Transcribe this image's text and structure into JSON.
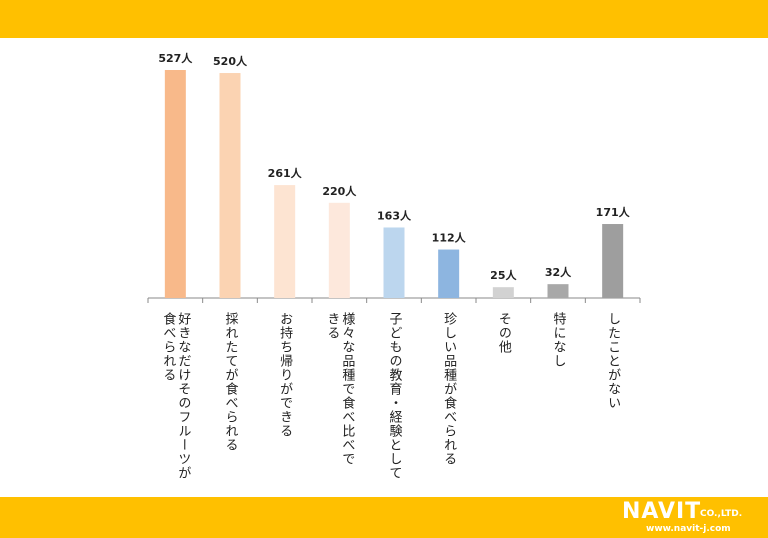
{
  "chart_data": {
    "type": "bar",
    "categories": [
      [
        "好きなだけそのフルーツが",
        "食べられる"
      ],
      [
        "採れたてが食べられる"
      ],
      [
        "お持ち帰りができる"
      ],
      [
        "様々な品種で食べ比べで",
        "きる"
      ],
      [
        "子どもの教育・経験として"
      ],
      [
        "珍しい品種が食べられる"
      ],
      [
        "その他"
      ],
      [
        "特になし"
      ],
      [
        "したことがない"
      ]
    ],
    "values": [
      527,
      520,
      261,
      220,
      163,
      112,
      25,
      32,
      171
    ],
    "value_labels": [
      "527人",
      "520人",
      "261人",
      "220人",
      "163人",
      "112人",
      "25人",
      "32人",
      "171人"
    ],
    "colors": [
      "#f8b98a",
      "#fbd3b2",
      "#fde4d2",
      "#fde8dc",
      "#bcd6ee",
      "#8db5e0",
      "#d2d2d2",
      "#a8a8a8",
      "#9e9e9e"
    ],
    "ylim": [
      0,
      560
    ],
    "grid": false,
    "legend": "none"
  },
  "logo": {
    "brand": "NAVIT",
    "suffix": "CO.,LTD.",
    "url": "www.navit-j.com"
  }
}
